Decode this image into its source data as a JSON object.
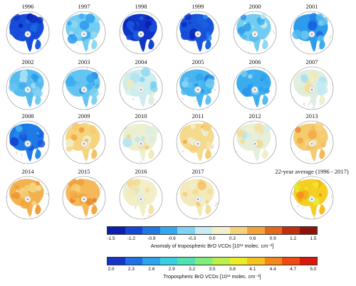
{
  "panels": [
    {
      "year": "1996",
      "anomaly": -1.2
    },
    {
      "year": "1997",
      "anomaly": -0.45
    },
    {
      "year": "1998",
      "anomaly": -1.35
    },
    {
      "year": "1999",
      "anomaly": -1.15
    },
    {
      "year": "2000",
      "anomaly": -0.45
    },
    {
      "year": "2001",
      "anomaly": -0.75
    },
    {
      "year": "2002",
      "anomaly": -0.55
    },
    {
      "year": "2003",
      "anomaly": -0.5
    },
    {
      "year": "2004",
      "anomaly": -0.1
    },
    {
      "year": "2005",
      "anomaly": -0.6
    },
    {
      "year": "2006",
      "anomaly": -0.65
    },
    {
      "year": "2007",
      "anomaly": 0.0
    },
    {
      "year": "2008",
      "anomaly": -0.95
    },
    {
      "year": "2009",
      "anomaly": 0.4
    },
    {
      "year": "2010",
      "anomaly": 0.1
    },
    {
      "year": "2011",
      "anomaly": 0.35
    },
    {
      "year": "2012",
      "anomaly": 0.05
    },
    {
      "year": "2013",
      "anomaly": 0.45
    },
    {
      "year": "2014",
      "anomaly": 0.6
    },
    {
      "year": "2015",
      "anomaly": 0.55
    },
    {
      "year": "2016",
      "anomaly": 0.15
    },
    {
      "year": "2017",
      "anomaly": 0.2
    }
  ],
  "average_panel": {
    "title": "22-year average (1996 - 2017)",
    "value": 4.1
  },
  "colorbars": [
    {
      "id": "anomaly",
      "ticks": [
        "-1.5",
        "-1.2",
        "-0.9",
        "-0.6",
        "-0.3",
        "0.0",
        "0.3",
        "0.6",
        "0.9",
        "1.2",
        "1.5"
      ],
      "label": "Anomaly of tropospheric BrO VCDs [10¹³ molec. cm⁻²]",
      "colors": [
        "#0a1fb0",
        "#1446d8",
        "#1f78e6",
        "#32a8ee",
        "#7fd2f2",
        "#c9ecf4",
        "#f2f0cc",
        "#f6d27a",
        "#f2a43a",
        "#e4681c",
        "#c0300e",
        "#8c1508"
      ]
    },
    {
      "id": "vcd",
      "ticks": [
        "2.0",
        "2.3",
        "2.6",
        "2.9",
        "3.2",
        "3.5",
        "3.8",
        "4.1",
        "4.4",
        "4.7",
        "5.0"
      ],
      "label": "Tropospheric BrO VCDs [10¹³ molec. cm⁻²]",
      "colors": [
        "#1535c8",
        "#1f6fe6",
        "#2ba4ee",
        "#38cfe0",
        "#4fe2b0",
        "#7ef07a",
        "#b9f04a",
        "#ecec2a",
        "#f8c21e",
        "#f5881a",
        "#ee4a14",
        "#d8180c"
      ]
    }
  ]
}
